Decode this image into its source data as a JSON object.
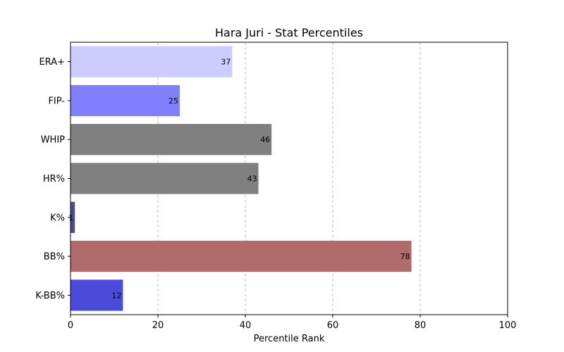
{
  "chart_data": {
    "type": "bar",
    "orientation": "horizontal",
    "title": "Hara Juri - Stat Percentiles",
    "xlabel": "Percentile Rank",
    "ylabel": "",
    "xlim": [
      0,
      100
    ],
    "xticks": [
      0,
      20,
      40,
      60,
      80,
      100
    ],
    "grid": "x dashed",
    "categories": [
      "ERA+",
      "FIP-",
      "WHIP",
      "HR%",
      "K%",
      "BB%",
      "K-BB%"
    ],
    "values": [
      37,
      25,
      46,
      43,
      1,
      78,
      12
    ],
    "colors": [
      "#ccccff",
      "#8080ff",
      "#808080",
      "#808080",
      "#4c4c8c",
      "#b06b6b",
      "#4b4bdb"
    ]
  }
}
